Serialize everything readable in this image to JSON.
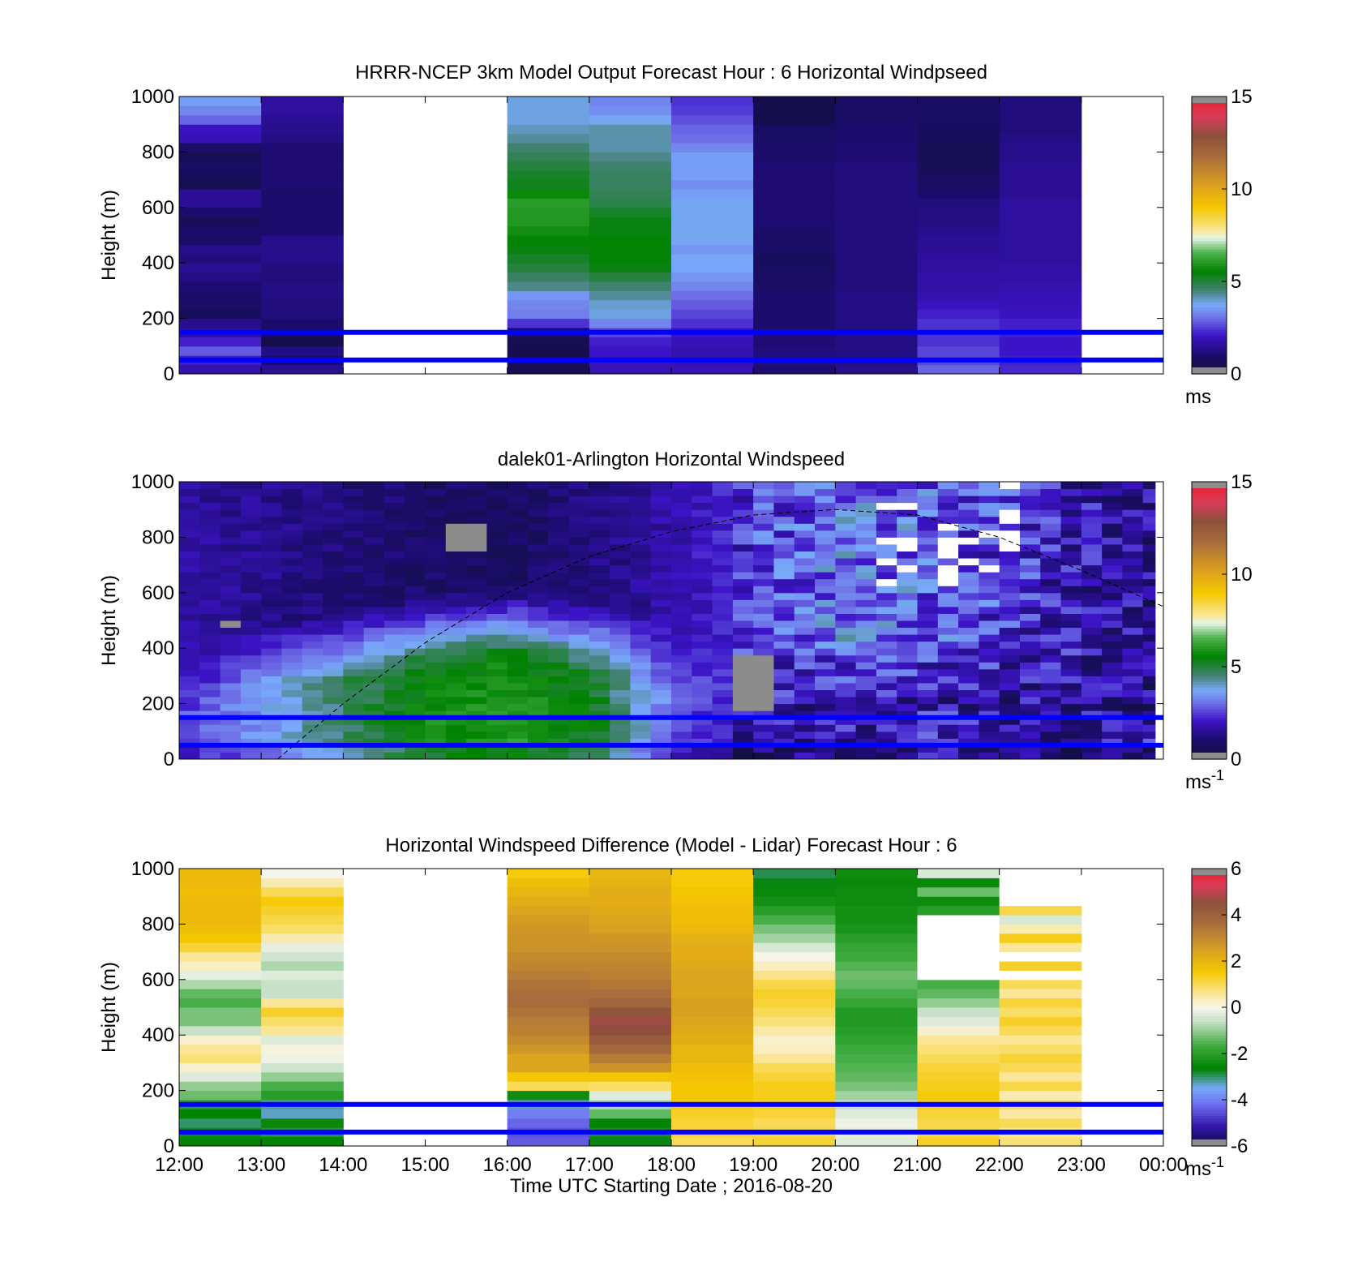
{
  "figure": {
    "xlabel": "Time UTC  Starting Date ; 2016-08-20",
    "xticklabels": [
      "12:00",
      "13:00",
      "14:00",
      "15:00",
      "16:00",
      "17:00",
      "18:00",
      "19:00",
      "20:00",
      "21:00",
      "22:00",
      "23:00",
      "00:00"
    ]
  },
  "chart_data": [
    {
      "type": "heatmap",
      "title": "HRRR-NCEP 3km Model Output   Forecast Hour : 6 Horizontal Windpseed",
      "xlabel": "",
      "ylabel": "Height (m)",
      "yticklabels": [
        "0",
        "200",
        "400",
        "600",
        "800",
        "1000"
      ],
      "ylim": [
        0,
        1000
      ],
      "xlim_hours": [
        12,
        24
      ],
      "colorbar": {
        "ticks": [
          "0",
          "5",
          "10",
          "15"
        ],
        "range": [
          0,
          15
        ],
        "unit_label": "ms",
        "unit_sup": ""
      },
      "reference_lines_m": [
        50,
        150
      ],
      "reference_line_color": "#0000ff",
      "columns": [
        {
          "x": 12,
          "missing": false,
          "values": [
            1.8,
            2.2,
            2.8,
            2.2,
            1.6,
            1.4,
            0.7,
            0.9,
            1.0,
            1.1,
            1.3,
            1.5,
            1.2,
            1.4,
            0.8,
            1.0,
            0.6,
            1.0,
            1.5,
            1.5,
            0.6,
            0.7,
            0.8,
            0.6,
            0.9,
            1.9,
            2.0,
            2.9,
            3.3,
            3.6
          ]
        },
        {
          "x": 13,
          "missing": false,
          "values": [
            1.5,
            1.0,
            1.3,
            0.4,
            0.8,
            1.0,
            1.2,
            1.2,
            1.3,
            1.3,
            1.2,
            1.2,
            1.4,
            1.4,
            1.4,
            1.0,
            1.0,
            1.0,
            1.0,
            1.0,
            1.1,
            1.1,
            1.1,
            1.1,
            1.1,
            1.3,
            1.4,
            1.5,
            1.6,
            1.6
          ]
        },
        {
          "x": 14,
          "missing": true,
          "values": []
        },
        {
          "x": 15,
          "missing": true,
          "values": []
        },
        {
          "x": 16,
          "missing": false,
          "values": [
            0.6,
            0.8,
            0.4,
            0.5,
            1.0,
            2.4,
            3.2,
            3.3,
            3.5,
            4.4,
            4.7,
            5.0,
            5.2,
            5.4,
            5.6,
            5.8,
            6.0,
            6.0,
            6.1,
            5.7,
            5.3,
            5.2,
            5.0,
            4.8,
            4.6,
            4.3,
            4.1,
            3.9,
            3.9,
            3.9
          ]
        },
        {
          "x": 17,
          "missing": false,
          "values": [
            1.9,
            2.0,
            2.1,
            2.2,
            2.6,
            3.3,
            3.9,
            4.0,
            4.3,
            4.6,
            5.0,
            5.4,
            5.6,
            5.6,
            5.6,
            5.4,
            5.4,
            5.2,
            4.9,
            4.8,
            4.7,
            4.7,
            4.6,
            4.4,
            4.2,
            4.2,
            4.2,
            3.8,
            3.4,
            3.3
          ]
        },
        {
          "x": 18,
          "missing": false,
          "values": [
            1.9,
            1.8,
            1.8,
            1.9,
            2.1,
            2.4,
            2.6,
            2.8,
            3.0,
            3.3,
            3.5,
            3.7,
            3.7,
            3.5,
            3.8,
            3.8,
            3.8,
            3.8,
            3.8,
            3.6,
            3.4,
            3.6,
            3.6,
            3.6,
            3.3,
            3.0,
            2.9,
            2.7,
            2.5,
            2.4
          ]
        },
        {
          "x": 19,
          "missing": false,
          "values": [
            1.1,
            1.2,
            1.2,
            1.1,
            1.1,
            1.0,
            1.0,
            1.0,
            1.0,
            0.9,
            0.8,
            0.8,
            0.7,
            0.9,
            0.9,
            1.0,
            1.1,
            1.1,
            1.1,
            1.1,
            1.1,
            1.1,
            1.1,
            1.0,
            1.0,
            0.9,
            0.8,
            0.4,
            0.4,
            0.4
          ]
        },
        {
          "x": 20,
          "missing": false,
          "values": [
            1.4,
            1.3,
            1.3,
            1.3,
            1.3,
            1.3,
            1.3,
            1.3,
            1.3,
            1.2,
            1.2,
            1.2,
            1.2,
            1.2,
            1.2,
            1.2,
            1.2,
            1.2,
            1.2,
            1.2,
            1.2,
            1.2,
            1.2,
            1.1,
            1.1,
            1.0,
            1.0,
            0.9,
            0.9,
            0.9
          ]
        },
        {
          "x": 21,
          "missing": false,
          "values": [
            2.9,
            2.6,
            2.6,
            2.4,
            2.4,
            2.4,
            2.2,
            2.0,
            1.8,
            1.7,
            1.7,
            1.6,
            1.6,
            1.5,
            1.5,
            1.4,
            1.3,
            1.3,
            1.2,
            1.0,
            0.8,
            0.8,
            0.6,
            0.6,
            0.6,
            0.7,
            0.7,
            0.8,
            0.8,
            0.8
          ]
        },
        {
          "x": 22,
          "missing": false,
          "values": [
            2.3,
            2.2,
            2.1,
            2.1,
            2.2,
            2.2,
            2.0,
            1.9,
            1.9,
            1.8,
            1.7,
            1.7,
            1.6,
            1.6,
            1.6,
            1.6,
            1.6,
            1.6,
            1.6,
            1.5,
            1.5,
            1.5,
            1.5,
            1.4,
            1.4,
            1.3,
            1.2,
            1.2,
            1.2,
            1.2
          ]
        },
        {
          "x": 23,
          "missing": true,
          "values": []
        }
      ]
    },
    {
      "type": "heatmap",
      "title": "dalek01-Arlington  Horizontal Windspeed",
      "xlabel": "",
      "ylabel": "Height (m)",
      "yticklabels": [
        "0",
        "200",
        "400",
        "600",
        "800",
        "1000"
      ],
      "ylim": [
        0,
        1000
      ],
      "xlim_hours": [
        12,
        24
      ],
      "colorbar": {
        "ticks": [
          "0",
          "5",
          "10",
          "15"
        ],
        "range": [
          0,
          15
        ],
        "unit_label": "ms",
        "unit_sup": "-1"
      },
      "reference_lines_m": [
        50,
        150
      ],
      "reference_line_color": "#0000ff",
      "overlay_curve": {
        "style": "dashed",
        "points_hours_m": [
          [
            13.2,
            0
          ],
          [
            14.0,
            200
          ],
          [
            15.0,
            420
          ],
          [
            16.0,
            600
          ],
          [
            17.0,
            730
          ],
          [
            18.0,
            820
          ],
          [
            19.0,
            880
          ],
          [
            20.0,
            900
          ],
          [
            21.0,
            880
          ],
          [
            22.0,
            800
          ],
          [
            23.0,
            680
          ],
          [
            24.0,
            550
          ]
        ]
      },
      "profile": {
        "x_start_hours": 12.0,
        "x_step_hours": 0.25,
        "anchor_hours": [
          12.0,
          13.0,
          14.0,
          15.0,
          16.0,
          17.0,
          18.0,
          19.0,
          20.0,
          21.0,
          22.0,
          23.0,
          23.9
        ],
        "near_surface": [
          2.8,
          3.6,
          4.8,
          5.8,
          6.0,
          5.2,
          2.6,
          1.6,
          1.8,
          2.1,
          1.7,
          1.6,
          1.9
        ],
        "jet_height_m": [
          100,
          160,
          220,
          270,
          290,
          240,
          150,
          120,
          100,
          100,
          100,
          100,
          100
        ],
        "jet_peak": [
          2.5,
          4.0,
          4.8,
          5.4,
          5.6,
          5.0,
          2.9,
          2.0,
          1.6,
          1.5,
          1.4,
          1.4,
          1.4
        ],
        "upper": [
          1.6,
          1.4,
          1.1,
          0.9,
          0.8,
          1.3,
          1.8,
          2.6,
          3.2,
          2.9,
          2.4,
          1.8,
          1.4
        ],
        "missing_cells": [
          {
            "h": [
              12.33,
              12.75
            ],
            "z": [
              470,
              510
            ]
          },
          {
            "h": [
              15.1,
              15.6
            ],
            "z": [
              740,
              860
            ]
          },
          {
            "h": [
              18.7,
              19.1
            ],
            "z": [
              180,
              380
            ]
          }
        ]
      }
    },
    {
      "type": "heatmap",
      "title": "Horizontal Windspeed Difference (Model - Lidar) Forecast Hour : 6",
      "xlabel": "Time UTC  Starting Date ; 2016-08-20",
      "ylabel": "Height (m)",
      "yticklabels": [
        "0",
        "200",
        "400",
        "600",
        "800",
        "1000"
      ],
      "ylim": [
        0,
        1000
      ],
      "xlim_hours": [
        12,
        24
      ],
      "colorbar": {
        "ticks": [
          "-6",
          "-4",
          "-2",
          "0",
          "2",
          "4",
          "6"
        ],
        "range": [
          -6,
          6
        ],
        "unit_label": "ms",
        "unit_sup": "-1"
      },
      "reference_lines_m": [
        50,
        150
      ],
      "reference_line_color": "#0000ff",
      "columns": [
        {
          "x": 12,
          "missing": false,
          "values": [
            -2.6,
            -2.4,
            -3.0,
            -2.6,
            -2.0,
            -1.3,
            -1.0,
            -0.3,
            0.2,
            0.8,
            0.6,
            0.2,
            -0.6,
            -1.2,
            -1.2,
            -1.6,
            -1.4,
            -0.8,
            -0.2,
            0.3,
            0.6,
            1.2,
            1.6,
            1.8,
            1.9,
            1.9,
            1.9,
            1.8,
            1.9,
            1.9
          ]
        },
        {
          "x": 13,
          "missing": false,
          "values": [
            -2.6,
            -2.9,
            -2.5,
            -3.3,
            -3.2,
            -2.0,
            -1.6,
            -1.0,
            -0.5,
            -0.1,
            0.1,
            -0.3,
            0.6,
            0.9,
            1.3,
            0.6,
            -0.6,
            -0.6,
            -0.3,
            -0.8,
            -0.5,
            -0.2,
            0.4,
            0.9,
            1.1,
            1.3,
            1.5,
            1.0,
            0.4,
            0.0
          ]
        },
        {
          "x": 14,
          "missing": true,
          "values": []
        },
        {
          "x": 15,
          "missing": true,
          "values": []
        },
        {
          "x": 16,
          "missing": false,
          "values": [
            -4.4,
            -4.5,
            -4.3,
            -4.0,
            -3.3,
            -2.4,
            1.0,
            1.6,
            2.4,
            2.4,
            2.7,
            3.0,
            3.2,
            3.3,
            3.5,
            3.7,
            3.6,
            3.5,
            3.3,
            3.1,
            3.0,
            2.8,
            2.8,
            2.7,
            2.6,
            2.4,
            2.2,
            2.0,
            1.8,
            1.5
          ]
        },
        {
          "x": 17,
          "missing": false,
          "values": [
            -2.7,
            -2.8,
            -2.6,
            -1.4,
            -0.8,
            -0.3,
            0.9,
            1.6,
            2.8,
            3.3,
            3.8,
            4.2,
            4.6,
            4.7,
            4.4,
            3.9,
            3.6,
            3.4,
            3.2,
            3.1,
            3.0,
            2.8,
            2.7,
            2.5,
            2.4,
            2.3,
            2.2,
            2.2,
            2.1,
            2.0
          ]
        },
        {
          "x": 18,
          "missing": false,
          "values": [
            1.0,
            1.2,
            1.2,
            1.3,
            1.5,
            1.6,
            1.6,
            1.7,
            1.8,
            2.0,
            2.0,
            2.2,
            2.3,
            2.4,
            2.5,
            2.5,
            2.4,
            2.4,
            2.4,
            2.3,
            2.2,
            2.2,
            2.1,
            1.9,
            1.8,
            1.8,
            1.7,
            1.6,
            1.5,
            1.5
          ]
        },
        {
          "x": 19,
          "missing": false,
          "values": [
            1.2,
            1.1,
            1.0,
            1.2,
            1.3,
            1.4,
            1.4,
            1.2,
            1.0,
            0.6,
            0.3,
            0.2,
            0.5,
            0.8,
            1.0,
            1.2,
            1.3,
            1.1,
            0.7,
            0.3,
            0.0,
            -0.4,
            -0.9,
            -1.2,
            -1.6,
            -2.0,
            -2.3,
            -2.5,
            -2.7,
            -2.9
          ]
        },
        {
          "x": 20,
          "missing": false,
          "values": [
            -0.3,
            -0.2,
            -0.1,
            -0.3,
            -0.6,
            -0.9,
            -1.2,
            -1.4,
            -1.5,
            -1.6,
            -1.7,
            -1.9,
            -2.0,
            -2.1,
            -2.1,
            -1.8,
            -1.6,
            -1.4,
            -1.3,
            -1.5,
            -1.7,
            -1.8,
            -2.0,
            -2.2,
            -2.3,
            -2.3,
            -2.4,
            -2.4,
            -2.5,
            -2.4
          ]
        },
        {
          "x": 21,
          "missing": false,
          "values": [
            1.3,
            1.1,
            1.1,
            1.2,
            1.4,
            1.5,
            1.4,
            1.3,
            1.2,
            1.0,
            0.8,
            0.6,
            0.2,
            -0.3,
            -0.6,
            -1.0,
            -1.4,
            -1.6,
            null,
            null,
            null,
            null,
            null,
            null,
            null,
            -2.0,
            -2.4,
            -1.3,
            -2.5,
            -0.4
          ]
        },
        {
          "x": 22,
          "missing": false,
          "values": [
            0.8,
            0.6,
            1.0,
            0.5,
            0.9,
            0.4,
            1.1,
            0.6,
            1.0,
            1.2,
            0.9,
            0.6,
            1.0,
            1.3,
            0.9,
            1.2,
            0.6,
            1.0,
            null,
            1.3,
            null,
            0.6,
            1.4,
            0.4,
            -0.4,
            1.1,
            null,
            null,
            null,
            null
          ]
        },
        {
          "x": 23,
          "missing": true,
          "values": []
        }
      ]
    }
  ]
}
